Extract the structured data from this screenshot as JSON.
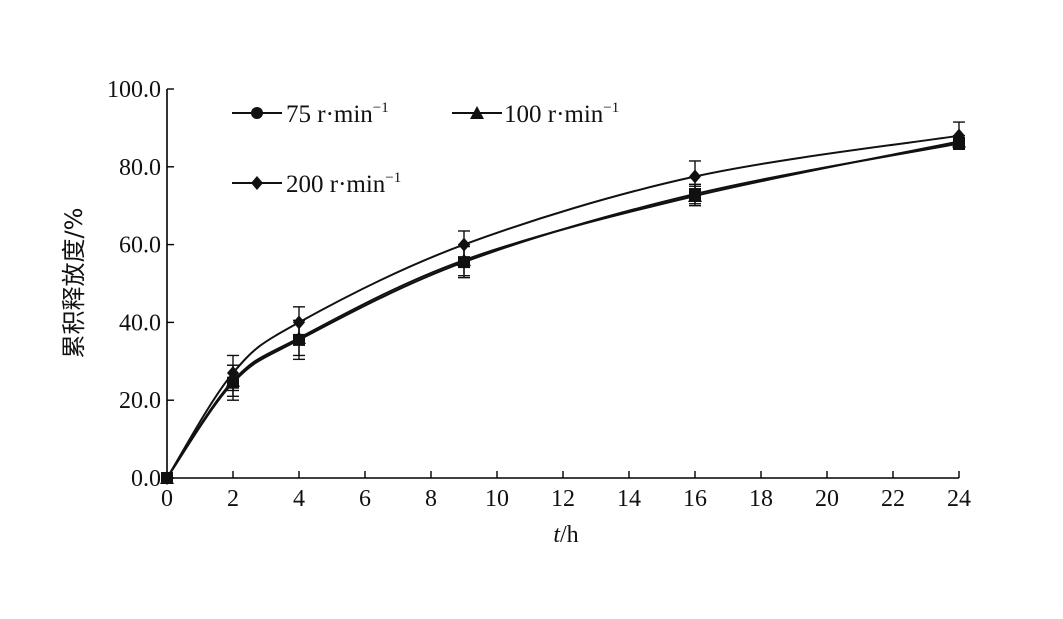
{
  "chart_data": {
    "type": "line",
    "xlabel": {
      "italic": "t",
      "rest": "/h"
    },
    "ylabel": "累积释放度/%",
    "xlim": [
      0,
      24
    ],
    "ylim": [
      0,
      100
    ],
    "x_ticks": [
      "0",
      "2",
      "4",
      "6",
      "8",
      "10",
      "12",
      "14",
      "16",
      "18",
      "20",
      "22",
      "24"
    ],
    "y_ticks": [
      "0.0",
      "20.0",
      "40.0",
      "60.0",
      "80.0",
      "100.0"
    ],
    "grid": false,
    "legend_placement": "top-left",
    "x": [
      0,
      2,
      4,
      9,
      16,
      24
    ],
    "series": [
      {
        "name": {
          "base": "75 r·min",
          "sup": "−1"
        },
        "marker": "square",
        "values": [
          0,
          24.5,
          35.5,
          55.5,
          73.0,
          86.0
        ],
        "errors": [
          0,
          4.5,
          5.0,
          4.0,
          2.5,
          1.5
        ]
      },
      {
        "name": {
          "base": "100 r·min",
          "sup": "−1"
        },
        "marker": "triangle",
        "values": [
          0,
          25.0,
          36.0,
          56.0,
          72.5,
          86.5
        ],
        "errors": [
          0,
          4.0,
          4.5,
          4.0,
          2.5,
          1.5
        ]
      },
      {
        "name": {
          "base": "200 r·min",
          "sup": "−1"
        },
        "marker": "diamond",
        "values": [
          0,
          27.0,
          40.0,
          60.0,
          77.5,
          88.0
        ],
        "errors": [
          0,
          4.5,
          4.0,
          3.5,
          4.0,
          3.5
        ]
      }
    ]
  }
}
